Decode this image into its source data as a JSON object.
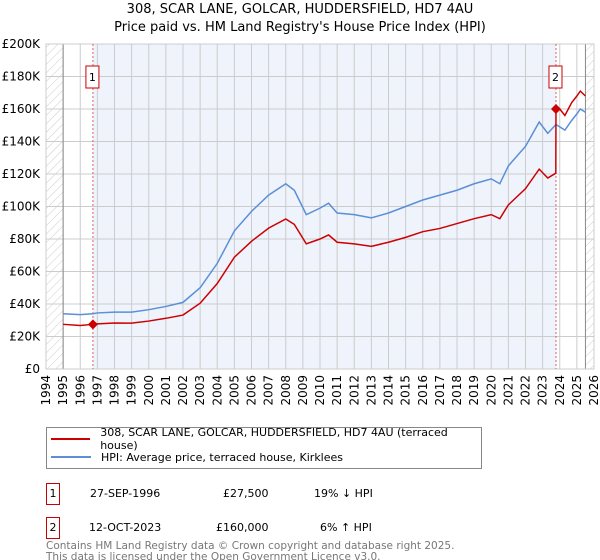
{
  "chart_data": {
    "type": "line",
    "title": "308, SCAR LANE, GOLCAR, HUDDERSFIELD, HD7 4AU",
    "subtitle": "Price paid vs. HM Land Registry's House Price Index (HPI)",
    "xlim": [
      1994,
      2026
    ],
    "ylim": [
      0,
      200000
    ],
    "x_ticks": [
      "1994",
      "1995",
      "1996",
      "1997",
      "1998",
      "1999",
      "2000",
      "2001",
      "2002",
      "2003",
      "2004",
      "2005",
      "2006",
      "2007",
      "2008",
      "2009",
      "2010",
      "2011",
      "2012",
      "2013",
      "2014",
      "2015",
      "2016",
      "2017",
      "2018",
      "2019",
      "2020",
      "2021",
      "2022",
      "2023",
      "2024",
      "2025",
      "2026"
    ],
    "y_ticks": [
      {
        "v": 0,
        "label": "£0"
      },
      {
        "v": 20000,
        "label": "£20K"
      },
      {
        "v": 40000,
        "label": "£40K"
      },
      {
        "v": 60000,
        "label": "£60K"
      },
      {
        "v": 80000,
        "label": "£80K"
      },
      {
        "v": 100000,
        "label": "£100K"
      },
      {
        "v": 120000,
        "label": "£120K"
      },
      {
        "v": 140000,
        "label": "£140K"
      },
      {
        "v": 160000,
        "label": "£160K"
      },
      {
        "v": 180000,
        "label": "£180K"
      },
      {
        "v": 200000,
        "label": "£200K"
      }
    ],
    "grid": true,
    "series": [
      {
        "name": "308, SCAR LANE, GOLCAR, HUDDERSFIELD, HD7 4AU (terraced house)",
        "color": "#cc0000",
        "x": [
          1995,
          1996,
          1996.74,
          1997,
          1998,
          1999,
          2000,
          2001,
          2002,
          2003,
          2004,
          2005,
          2006,
          2007,
          2008,
          2008.5,
          2009.2,
          2010,
          2010.5,
          2011,
          2012,
          2013,
          2014,
          2015,
          2016,
          2017,
          2018,
          2019,
          2020,
          2020.5,
          2021,
          2022,
          2022.8,
          2023.3,
          2023.77,
          2023.78,
          2024,
          2024.3,
          2024.7,
          2025,
          2025.2,
          2025.5
        ],
        "y": [
          27500,
          26800,
          27500,
          27800,
          28300,
          28200,
          29500,
          31200,
          33200,
          40500,
          52600,
          68800,
          78600,
          86700,
          92300,
          89000,
          77000,
          80000,
          82500,
          78000,
          77000,
          75500,
          78000,
          81000,
          84500,
          86500,
          89500,
          92500,
          95000,
          92500,
          101000,
          111000,
          123000,
          117500,
          120500,
          160000,
          160000,
          156000,
          164000,
          168000,
          171000,
          168000
        ]
      },
      {
        "name": "HPI: Average price, terraced house, Kirklees",
        "color": "#5b8fd6",
        "x": [
          1995,
          1996,
          1996.74,
          1997,
          1998,
          1999,
          2000,
          2001,
          2002,
          2003,
          2004,
          2005,
          2006,
          2007,
          2008,
          2008.5,
          2009.2,
          2010,
          2010.5,
          2011,
          2012,
          2013,
          2014,
          2015,
          2016,
          2017,
          2018,
          2019,
          2020,
          2020.5,
          2021,
          2022,
          2022.8,
          2023.3,
          2023.78,
          2024,
          2024.3,
          2024.7,
          2025,
          2025.2,
          2025.5
        ],
        "y": [
          34000,
          33500,
          34000,
          34500,
          35000,
          35000,
          36500,
          38500,
          41000,
          50000,
          65000,
          85000,
          97000,
          107000,
          114000,
          110000,
          95000,
          99000,
          102000,
          96000,
          95000,
          93000,
          96000,
          100000,
          104000,
          107000,
          110000,
          114000,
          117000,
          114000,
          125000,
          137000,
          152000,
          145000,
          150500,
          149000,
          147000,
          153000,
          157000,
          160000,
          158000
        ]
      }
    ],
    "annotations": [
      {
        "label": "1",
        "x": 1996.74,
        "y": 27500
      },
      {
        "label": "2",
        "x": 2023.78,
        "y": 160000
      }
    ],
    "shaded_range": [
      1996.74,
      2023.78
    ],
    "hatched_ranges": [
      [
        1994,
        1995
      ],
      [
        2025.5,
        2026
      ]
    ],
    "legend_placement": "below"
  },
  "table": [
    {
      "num": "1",
      "date": "27-SEP-1996",
      "price": "£27,500",
      "hpi": "19% ↓ HPI"
    },
    {
      "num": "2",
      "date": "12-OCT-2023",
      "price": "£160,000",
      "hpi": "6% ↑ HPI"
    }
  ],
  "footer": [
    "Contains HM Land Registry data © Crown copyright and database right 2025.",
    "This data is licensed under the Open Government Licence v3.0."
  ]
}
